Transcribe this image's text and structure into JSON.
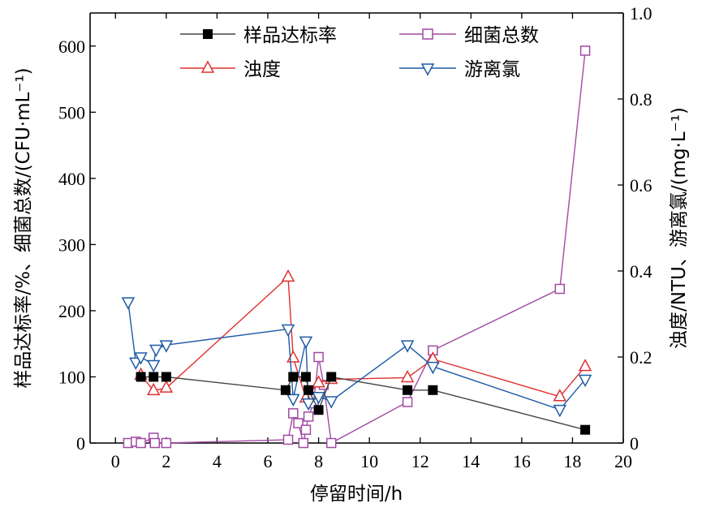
{
  "chart_data": {
    "type": "line",
    "xlabel": "停留时间/h",
    "ylabel_left": "样品达标率/%、细菌总数/(CFU·mL⁻¹)",
    "ylabel_right": "浊度/NTU、游离氯/(mg·L⁻¹)",
    "xlim": [
      -1,
      20
    ],
    "ylim_left": [
      0,
      650
    ],
    "ylim_right": [
      0,
      1.0
    ],
    "x_ticks": [
      "0",
      "2",
      "4",
      "6",
      "8",
      "10",
      "12",
      "14",
      "16",
      "18",
      "20"
    ],
    "y_left_ticks": [
      "0",
      "100",
      "200",
      "300",
      "400",
      "500",
      "600"
    ],
    "y_right_ticks": [
      "0",
      "0.2",
      "0.4",
      "0.6",
      "0.8",
      "1.0"
    ],
    "legend_placement": "top-center",
    "grid": false,
    "series": [
      {
        "name": "样品达标率",
        "axis": "left",
        "marker": "square-filled",
        "color": "#000000",
        "line_color": "#444444",
        "x": [
          1.0,
          1.5,
          2.0,
          6.7,
          7.0,
          7.5,
          7.6,
          8.0,
          8.5,
          11.5,
          12.5,
          18.5
        ],
        "y": [
          100,
          100,
          100,
          80,
          100,
          100,
          80,
          50,
          100,
          80,
          80,
          20
        ]
      },
      {
        "name": "细菌总数",
        "axis": "left",
        "marker": "square-open",
        "color": "#a24aa2",
        "x": [
          0.5,
          0.8,
          1.0,
          1.5,
          1.55,
          2.0,
          6.8,
          7.0,
          7.2,
          7.4,
          7.5,
          7.6,
          7.8,
          8.0,
          8.2,
          8.5,
          11.5,
          12.5,
          17.5,
          18.5
        ],
        "y": [
          0,
          2,
          0,
          8,
          0,
          0,
          5,
          45,
          30,
          0,
          20,
          40,
          60,
          130,
          88,
          0,
          62,
          140,
          233,
          593
        ]
      },
      {
        "name": "浊度",
        "axis": "right",
        "marker": "triangle-up-open",
        "color": "#e03030",
        "x": [
          1.0,
          1.5,
          2.0,
          6.8,
          7.0,
          7.5,
          8.0,
          8.5,
          11.5,
          12.5,
          17.5,
          18.5
        ],
        "y": [
          0.158,
          0.122,
          0.128,
          0.386,
          0.198,
          0.105,
          0.14,
          0.148,
          0.152,
          0.195,
          0.108,
          0.178
        ]
      },
      {
        "name": "游离氯",
        "axis": "right",
        "marker": "triangle-down-open",
        "color": "#1f5aa6",
        "x": [
          0.5,
          0.8,
          1.0,
          1.5,
          1.6,
          2.0,
          6.8,
          7.0,
          7.5,
          7.6,
          8.0,
          8.5,
          11.5,
          12.5,
          17.5,
          18.5
        ],
        "y": [
          0.328,
          0.188,
          0.2,
          0.182,
          0.218,
          0.228,
          0.265,
          0.103,
          0.237,
          0.093,
          0.108,
          0.098,
          0.228,
          0.178,
          0.078,
          0.148
        ]
      }
    ]
  }
}
